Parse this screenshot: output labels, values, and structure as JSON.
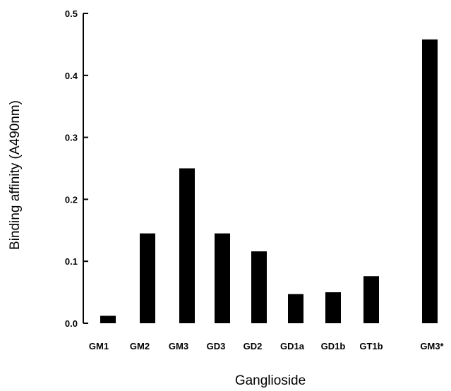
{
  "chart_data": {
    "type": "bar",
    "categories": [
      "GM1",
      "GM2",
      "GM3",
      "GD3",
      "GD2",
      "GD1a",
      "GD1b",
      "GT1b",
      "GM3*"
    ],
    "values": [
      0.012,
      0.145,
      0.25,
      0.145,
      0.116,
      0.047,
      0.05,
      0.076,
      0.458
    ],
    "xlabel": "Ganglioside",
    "ylabel": "Binding affinity (A490nm)",
    "ylim": [
      0,
      0.5
    ],
    "yticks": [
      0.0,
      0.1,
      0.2,
      0.3,
      0.4,
      0.5
    ],
    "ytick_labels": [
      "0.0",
      "0.1",
      "0.2",
      "0.3",
      "0.4",
      "0.5"
    ],
    "grid": false,
    "bar_color": "#000000"
  }
}
